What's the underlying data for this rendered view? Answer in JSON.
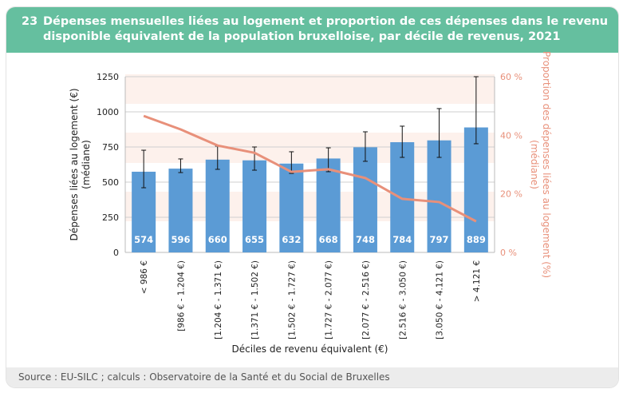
{
  "header": {
    "number": "23",
    "title": "Dépenses mensuelles liées au logement et proportion de ces dépenses dans le revenu disponible équivalent de la population bruxelloise, par décile de revenus, 2021"
  },
  "footer": {
    "source": "Source : EU-SILC ; calculs : Observatoire de la Santé et du Social de Bruxelles"
  },
  "colors": {
    "header": "#65bf9f",
    "bar": "#5b9bd5",
    "line": "#e8907a",
    "band": "#fdf1ec"
  },
  "chart_data": {
    "type": "bar",
    "title": "Dépenses mensuelles liées au logement et proportion de ces dépenses dans le revenu disponible équivalent",
    "xlabel": "Déciles de revenu équivalent (€)",
    "ylabel": "Dépenses liées au logement (€) (médiane)",
    "ylabel_lines": [
      "Dépenses liées au logement (€)",
      "(médiane)"
    ],
    "y2label_lines": [
      "Proportion des dépenses liées au logement (%)",
      "(médiane)"
    ],
    "ylim": [
      0,
      1250
    ],
    "yticks": [
      "0",
      "250",
      "500",
      "750",
      "1000",
      "1250"
    ],
    "y2lim": [
      0,
      60
    ],
    "y2ticks": [
      "0 %",
      "20 %",
      "40 %",
      "60 %"
    ],
    "categories": [
      "< 986 €",
      "[986 € - 1.204 €)",
      "[1.204 € - 1.371 €)",
      "[1.371 € - 1.502 €)",
      "[1.502 € - 1.727 €)",
      "[1.727 € - 2.077 €)",
      "[2.077 € - 2.516 €)",
      "[2.516 € - 3.050 €)",
      "[3.050 € - 4.121 €)",
      "> 4.121 €"
    ],
    "series": [
      {
        "name": "Dépenses liées au logement (médiane, €)",
        "type": "bar",
        "axis": "left",
        "values": [
          574,
          596,
          660,
          655,
          632,
          668,
          748,
          784,
          797,
          889
        ],
        "error_low": [
          460,
          568,
          591,
          585,
          562,
          574,
          648,
          676,
          676,
          773
        ],
        "error_high": [
          727,
          665,
          756,
          750,
          716,
          744,
          858,
          898,
          1023,
          1250
        ]
      },
      {
        "name": "Proportion dans le revenu (médiane, %)",
        "type": "line",
        "axis": "right",
        "values": [
          46.6,
          42,
          36.5,
          34,
          27.5,
          28.4,
          25.4,
          18.3,
          17.2,
          10.6
        ]
      }
    ],
    "grid": true
  }
}
